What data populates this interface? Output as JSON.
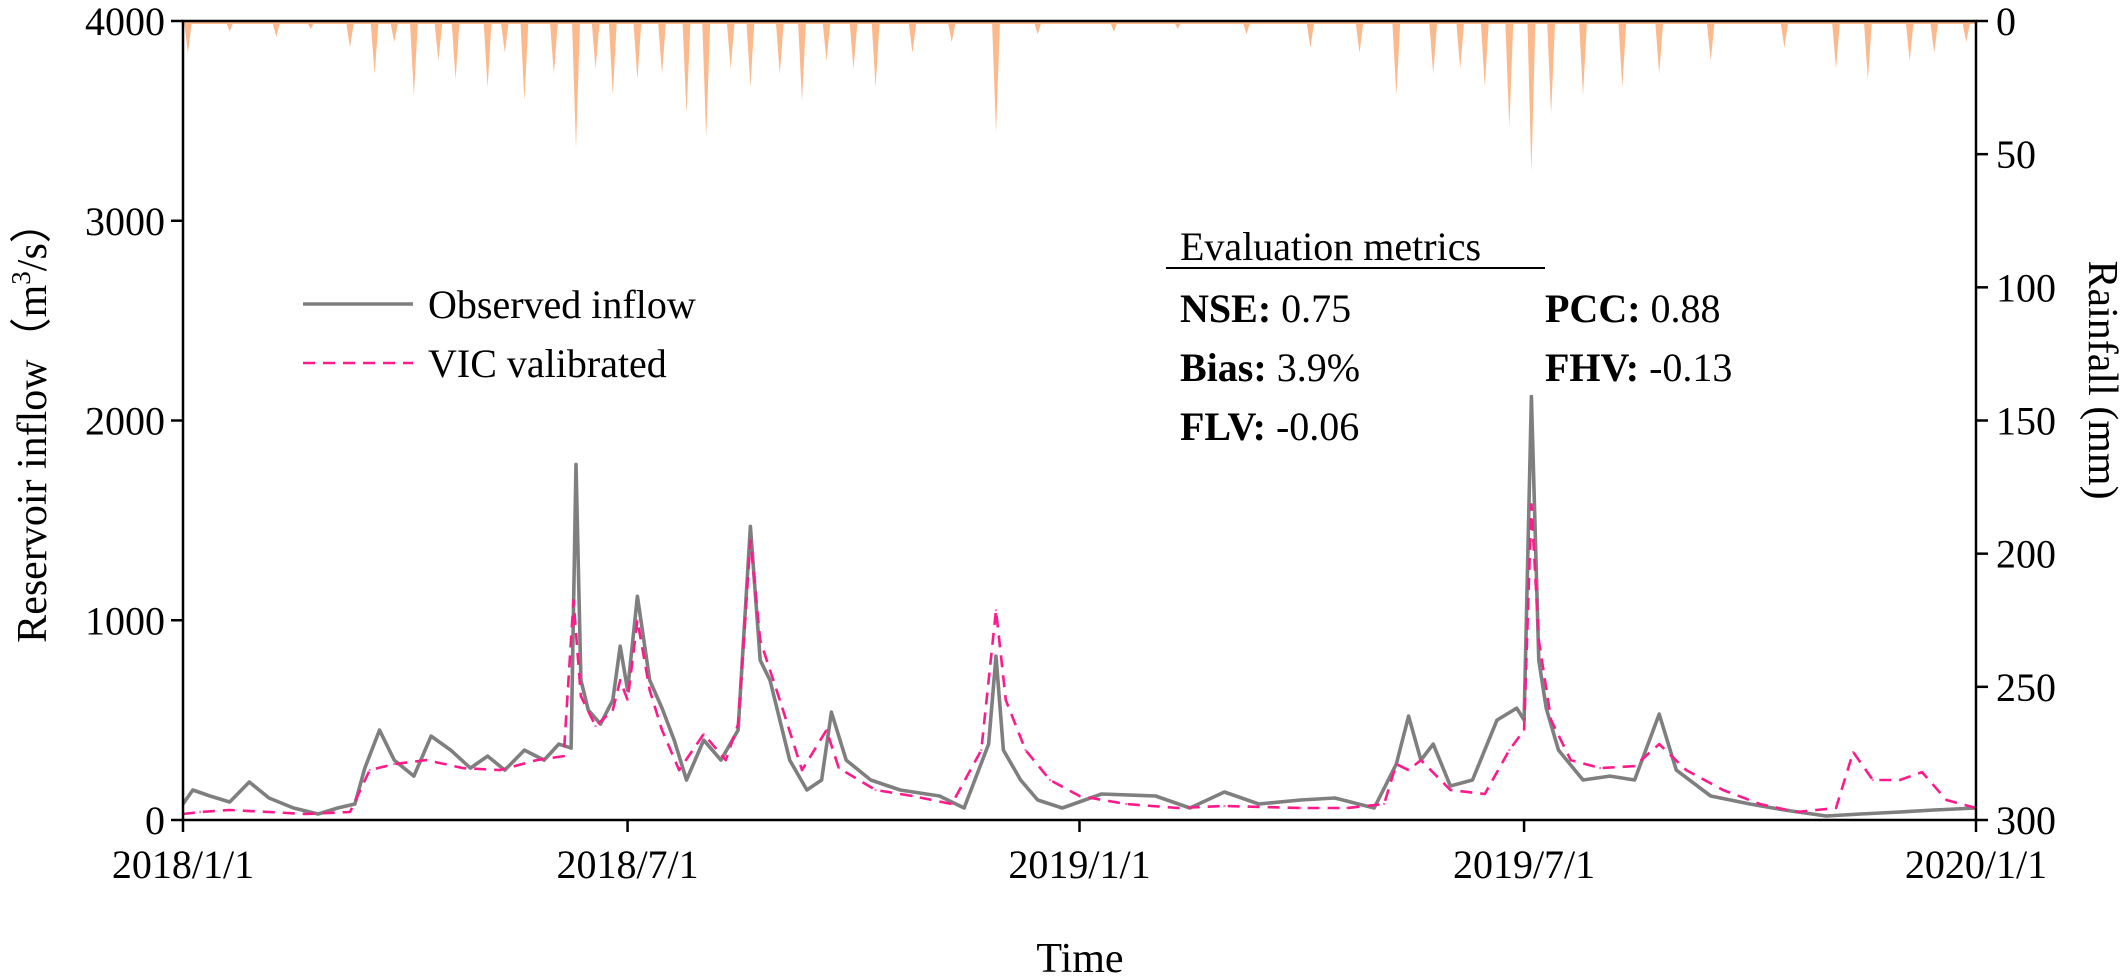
{
  "chart_data": {
    "type": "line",
    "title": "",
    "xlabel": "Time",
    "ylabel": "Reservoir inflow（m³/s）",
    "ylabel_parts": {
      "main": "Reservoir inflow（m",
      "sup": "3",
      "tail": "/s）"
    },
    "y2label": "Rainfall (mm)",
    "xlim": [
      "2018/1/1",
      "2020/1/1"
    ],
    "xticks": [
      "2018/1/1",
      "2018/7/1",
      "2019/1/1",
      "2019/7/1",
      "2020/1/1"
    ],
    "ylim": [
      0,
      4000
    ],
    "yticks": [
      "0",
      "1000",
      "2000",
      "3000",
      "4000"
    ],
    "y2lim": [
      0,
      300
    ],
    "y2_inverted": true,
    "y2ticks": [
      "0",
      "50",
      "100",
      "150",
      "200",
      "250",
      "300"
    ],
    "grid": false,
    "legend_placement": "upper-left",
    "colors": {
      "observed": "#7f7f7f",
      "vic": "#ff1a8c",
      "rainfall": "#fbb98c"
    },
    "series": [
      {
        "name": "Observed inflow",
        "points": [
          [
            "2018/1/1",
            80
          ],
          [
            "2018/1/5",
            150
          ],
          [
            "2018/1/12",
            120
          ],
          [
            "2018/1/20",
            90
          ],
          [
            "2018/1/28",
            190
          ],
          [
            "2018/2/5",
            110
          ],
          [
            "2018/2/15",
            60
          ],
          [
            "2018/2/25",
            30
          ],
          [
            "2018/3/5",
            60
          ],
          [
            "2018/3/12",
            80
          ],
          [
            "2018/3/16",
            260
          ],
          [
            "2018/3/22",
            450
          ],
          [
            "2018/3/28",
            300
          ],
          [
            "2018/4/5",
            220
          ],
          [
            "2018/4/12",
            420
          ],
          [
            "2018/4/20",
            350
          ],
          [
            "2018/4/28",
            260
          ],
          [
            "2018/5/5",
            320
          ],
          [
            "2018/5/12",
            250
          ],
          [
            "2018/5/20",
            350
          ],
          [
            "2018/5/28",
            300
          ],
          [
            "2018/6/3",
            380
          ],
          [
            "2018/6/8",
            360
          ],
          [
            "2018/6/10",
            1780
          ],
          [
            "2018/6/12",
            700
          ],
          [
            "2018/6/15",
            550
          ],
          [
            "2018/6/20",
            480
          ],
          [
            "2018/6/25",
            600
          ],
          [
            "2018/6/28",
            870
          ],
          [
            "2018/7/1",
            650
          ],
          [
            "2018/7/5",
            1120
          ],
          [
            "2018/7/10",
            700
          ],
          [
            "2018/7/15",
            560
          ],
          [
            "2018/7/20",
            400
          ],
          [
            "2018/7/25",
            200
          ],
          [
            "2018/8/1",
            400
          ],
          [
            "2018/8/8",
            300
          ],
          [
            "2018/8/15",
            450
          ],
          [
            "2018/8/20",
            1470
          ],
          [
            "2018/8/24",
            800
          ],
          [
            "2018/8/28",
            700
          ],
          [
            "2018/9/5",
            300
          ],
          [
            "2018/9/12",
            150
          ],
          [
            "2018/9/18",
            200
          ],
          [
            "2018/9/22",
            540
          ],
          [
            "2018/9/28",
            300
          ],
          [
            "2018/10/8",
            200
          ],
          [
            "2018/10/20",
            150
          ],
          [
            "2018/11/5",
            120
          ],
          [
            "2018/11/15",
            60
          ],
          [
            "2018/11/25",
            380
          ],
          [
            "2018/11/28",
            820
          ],
          [
            "2018/12/1",
            350
          ],
          [
            "2018/12/8",
            200
          ],
          [
            "2018/12/15",
            100
          ],
          [
            "2018/12/25",
            60
          ],
          [
            "2019/1/10",
            130
          ],
          [
            "2019/2/1",
            120
          ],
          [
            "2019/2/15",
            60
          ],
          [
            "2019/3/1",
            140
          ],
          [
            "2019/3/15",
            80
          ],
          [
            "2019/4/1",
            100
          ],
          [
            "2019/4/15",
            110
          ],
          [
            "2019/5/1",
            60
          ],
          [
            "2019/5/10",
            280
          ],
          [
            "2019/5/15",
            520
          ],
          [
            "2019/5/20",
            300
          ],
          [
            "2019/5/25",
            380
          ],
          [
            "2019/6/1",
            170
          ],
          [
            "2019/6/10",
            200
          ],
          [
            "2019/6/20",
            500
          ],
          [
            "2019/6/28",
            560
          ],
          [
            "2019/7/1",
            500
          ],
          [
            "2019/7/4",
            2120
          ],
          [
            "2019/7/7",
            800
          ],
          [
            "2019/7/10",
            560
          ],
          [
            "2019/7/15",
            350
          ],
          [
            "2019/7/25",
            200
          ],
          [
            "2019/8/5",
            220
          ],
          [
            "2019/8/15",
            200
          ],
          [
            "2019/8/25",
            530
          ],
          [
            "2019/9/1",
            250
          ],
          [
            "2019/9/15",
            120
          ],
          [
            "2019/10/1",
            80
          ],
          [
            "2019/10/15",
            50
          ],
          [
            "2019/11/1",
            20
          ],
          [
            "2019/11/15",
            30
          ],
          [
            "2019/12/1",
            40
          ],
          [
            "2019/12/15",
            50
          ],
          [
            "2020/1/1",
            60
          ]
        ]
      },
      {
        "name": "VIC valibrated",
        "points": [
          [
            "2018/1/1",
            30
          ],
          [
            "2018/1/8",
            40
          ],
          [
            "2018/1/20",
            50
          ],
          [
            "2018/2/5",
            40
          ],
          [
            "2018/2/20",
            30
          ],
          [
            "2018/3/10",
            40
          ],
          [
            "2018/3/18",
            250
          ],
          [
            "2018/3/28",
            280
          ],
          [
            "2018/4/10",
            300
          ],
          [
            "2018/4/25",
            260
          ],
          [
            "2018/5/10",
            250
          ],
          [
            "2018/5/25",
            300
          ],
          [
            "2018/6/5",
            320
          ],
          [
            "2018/6/9",
            1100
          ],
          [
            "2018/6/12",
            620
          ],
          [
            "2018/6/18",
            470
          ],
          [
            "2018/6/25",
            550
          ],
          [
            "2018/6/28",
            700
          ],
          [
            "2018/7/1",
            600
          ],
          [
            "2018/7/5",
            1000
          ],
          [
            "2018/7/10",
            650
          ],
          [
            "2018/7/15",
            450
          ],
          [
            "2018/7/22",
            250
          ],
          [
            "2018/8/1",
            430
          ],
          [
            "2018/8/10",
            300
          ],
          [
            "2018/8/15",
            480
          ],
          [
            "2018/8/20",
            1400
          ],
          [
            "2018/8/24",
            900
          ],
          [
            "2018/9/1",
            600
          ],
          [
            "2018/9/10",
            250
          ],
          [
            "2018/9/20",
            450
          ],
          [
            "2018/9/25",
            260
          ],
          [
            "2018/10/10",
            150
          ],
          [
            "2018/10/25",
            120
          ],
          [
            "2018/11/10",
            80
          ],
          [
            "2018/11/22",
            350
          ],
          [
            "2018/11/28",
            1050
          ],
          [
            "2018/12/2",
            600
          ],
          [
            "2018/12/10",
            350
          ],
          [
            "2018/12/20",
            200
          ],
          [
            "2019/1/1",
            120
          ],
          [
            "2019/1/20",
            80
          ],
          [
            "2019/2/10",
            60
          ],
          [
            "2019/3/1",
            70
          ],
          [
            "2019/4/1",
            60
          ],
          [
            "2019/4/20",
            60
          ],
          [
            "2019/5/5",
            80
          ],
          [
            "2019/5/10",
            280
          ],
          [
            "2019/5/15",
            250
          ],
          [
            "2019/5/20",
            300
          ],
          [
            "2019/6/1",
            150
          ],
          [
            "2019/6/15",
            130
          ],
          [
            "2019/6/25",
            350
          ],
          [
            "2019/7/1",
            450
          ],
          [
            "2019/7/4",
            1580
          ],
          [
            "2019/7/7",
            900
          ],
          [
            "2019/7/12",
            500
          ],
          [
            "2019/7/20",
            300
          ],
          [
            "2019/8/1",
            260
          ],
          [
            "2019/8/15",
            270
          ],
          [
            "2019/8/25",
            380
          ],
          [
            "2019/9/5",
            250
          ],
          [
            "2019/9/20",
            150
          ],
          [
            "2019/10/5",
            80
          ],
          [
            "2019/10/20",
            40
          ],
          [
            "2019/11/5",
            60
          ],
          [
            "2019/11/12",
            340
          ],
          [
            "2019/11/20",
            200
          ],
          [
            "2019/12/1",
            200
          ],
          [
            "2019/12/10",
            240
          ],
          [
            "2019/12/20",
            100
          ],
          [
            "2020/1/1",
            60
          ]
        ]
      },
      {
        "name": "Rainfall",
        "axis": "right",
        "points": [
          [
            "2018/1/3",
            12
          ],
          [
            "2018/1/20",
            4
          ],
          [
            "2018/2/8",
            6
          ],
          [
            "2018/2/22",
            3
          ],
          [
            "2018/3/10",
            10
          ],
          [
            "2018/3/20",
            20
          ],
          [
            "2018/3/28",
            8
          ],
          [
            "2018/4/5",
            28
          ],
          [
            "2018/4/15",
            15
          ],
          [
            "2018/4/22",
            22
          ],
          [
            "2018/5/5",
            25
          ],
          [
            "2018/5/12",
            12
          ],
          [
            "2018/5/20",
            30
          ],
          [
            "2018/6/1",
            20
          ],
          [
            "2018/6/10",
            48
          ],
          [
            "2018/6/18",
            18
          ],
          [
            "2018/6/25",
            28
          ],
          [
            "2018/7/5",
            22
          ],
          [
            "2018/7/15",
            20
          ],
          [
            "2018/7/25",
            35
          ],
          [
            "2018/8/2",
            44
          ],
          [
            "2018/8/12",
            18
          ],
          [
            "2018/8/20",
            25
          ],
          [
            "2018/9/1",
            20
          ],
          [
            "2018/9/10",
            30
          ],
          [
            "2018/9/20",
            15
          ],
          [
            "2018/10/1",
            18
          ],
          [
            "2018/10/10",
            25
          ],
          [
            "2018/10/25",
            12
          ],
          [
            "2018/11/10",
            8
          ],
          [
            "2018/11/28",
            42
          ],
          [
            "2018/12/15",
            5
          ],
          [
            "2019/1/15",
            4
          ],
          [
            "2019/2/10",
            3
          ],
          [
            "2019/3/10",
            5
          ],
          [
            "2019/4/5",
            10
          ],
          [
            "2019/4/25",
            12
          ],
          [
            "2019/5/10",
            28
          ],
          [
            "2019/5/25",
            20
          ],
          [
            "2019/6/5",
            18
          ],
          [
            "2019/6/15",
            25
          ],
          [
            "2019/6/25",
            40
          ],
          [
            "2019/7/4",
            57
          ],
          [
            "2019/7/12",
            35
          ],
          [
            "2019/7/25",
            28
          ],
          [
            "2019/8/10",
            25
          ],
          [
            "2019/8/25",
            20
          ],
          [
            "2019/9/15",
            15
          ],
          [
            "2019/10/15",
            10
          ],
          [
            "2019/11/5",
            18
          ],
          [
            "2019/11/18",
            22
          ],
          [
            "2019/12/5",
            15
          ],
          [
            "2019/12/15",
            12
          ],
          [
            "2019/12/28",
            8
          ]
        ]
      }
    ],
    "annotations": {
      "metrics_title": "Evaluation metrics",
      "metrics": [
        {
          "label": "NSE:",
          "value": "0.75"
        },
        {
          "label": "PCC:",
          "value": "0.88"
        },
        {
          "label": "Bias:",
          "value": "3.9%"
        },
        {
          "label": "FHV:",
          "value": "-0.13"
        },
        {
          "label": "FLV:",
          "value": "-0.06"
        }
      ]
    }
  }
}
